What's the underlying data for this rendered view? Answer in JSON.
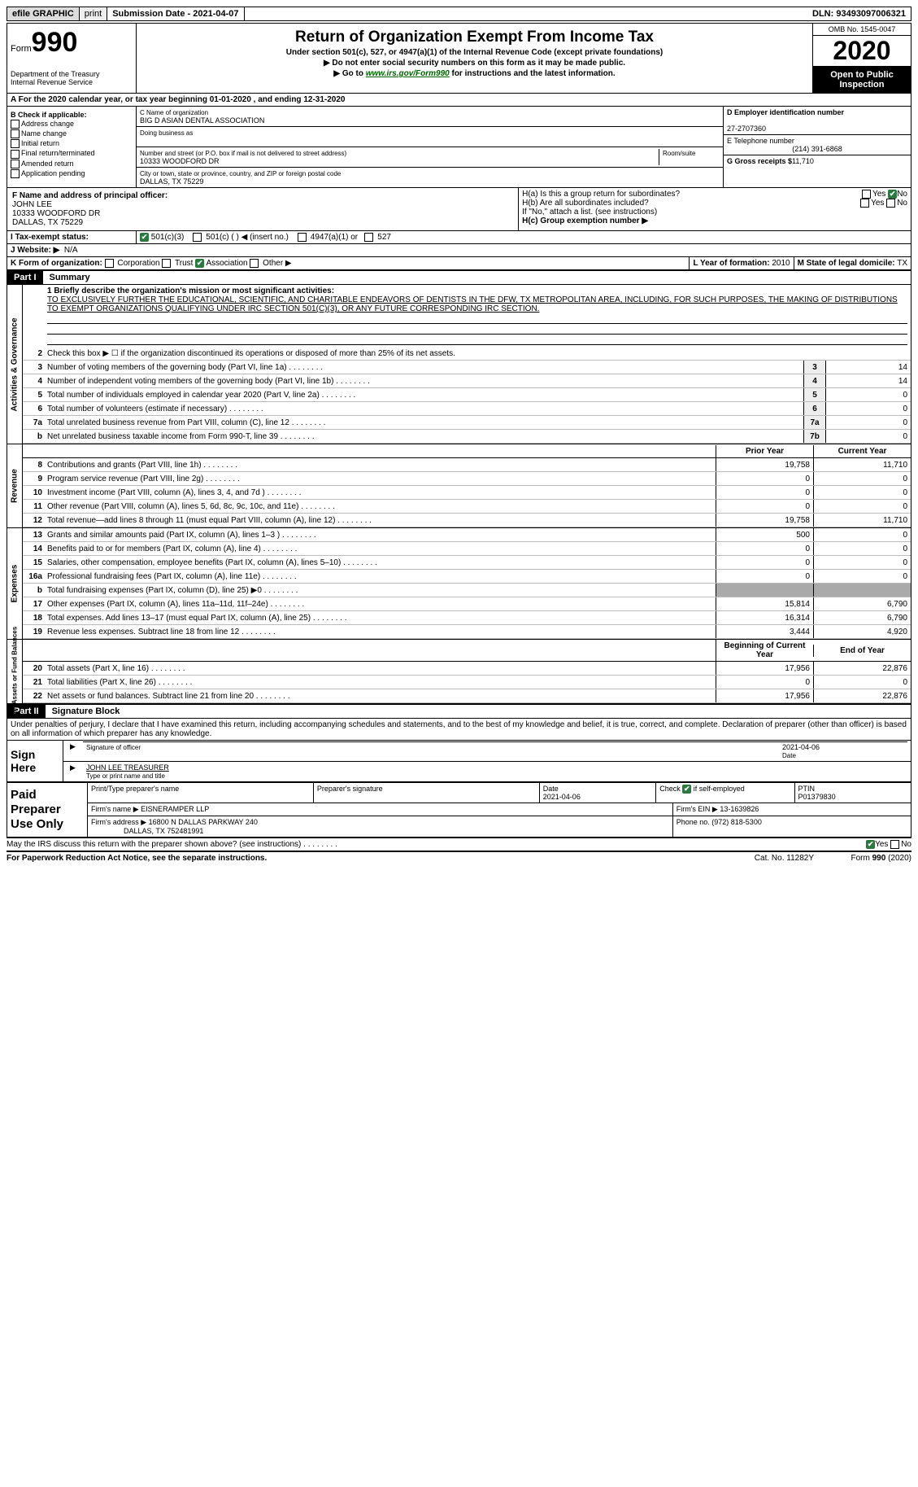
{
  "top": {
    "efile": "efile GRAPHIC",
    "print": "print",
    "sub_label": "Submission Date - ",
    "sub_date": "2021-04-07",
    "dln_label": "DLN: ",
    "dln": "93493097006321"
  },
  "header": {
    "form_label": "Form",
    "form_num": "990",
    "dept": "Department of the Treasury\nInternal Revenue Service",
    "title": "Return of Organization Exempt From Income Tax",
    "sub1": "Under section 501(c), 527, or 4947(a)(1) of the Internal Revenue Code (except private foundations)",
    "sub2": "▶ Do not enter social security numbers on this form as it may be made public.",
    "sub3_pre": "▶ Go to ",
    "sub3_link": "www.irs.gov/Form990",
    "sub3_post": " for instructions and the latest information.",
    "omb": "OMB No. 1545-0047",
    "year": "2020",
    "open": "Open to Public Inspection"
  },
  "row_a": "A For the 2020 calendar year, or tax year beginning 01-01-2020    , and ending 12-31-2020",
  "b": {
    "title": "B Check if applicable:",
    "items": [
      "Address change",
      "Name change",
      "Initial return",
      "Final return/terminated",
      "Amended return",
      "Application pending"
    ]
  },
  "c": {
    "name_label": "C Name of organization",
    "name": "BIG D ASIAN DENTAL ASSOCIATION",
    "dba_label": "Doing business as",
    "dba": "",
    "addr_label": "Number and street (or P.O. box if mail is not delivered to street address)",
    "room_label": "Room/suite",
    "addr": "10333 WOODFORD DR",
    "city_label": "City or town, state or province, country, and ZIP or foreign postal code",
    "city": "DALLAS, TX  75229"
  },
  "d": {
    "label": "D Employer identification number",
    "val": "27-2707360"
  },
  "e": {
    "label": "E Telephone number",
    "val": "(214) 391-6868"
  },
  "g": {
    "label": "G Gross receipts $",
    "val": "11,710"
  },
  "f": {
    "label": "F Name and address of principal officer:",
    "name": "JOHN LEE",
    "addr1": "10333 WOODFORD DR",
    "addr2": "DALLAS, TX  75229"
  },
  "h": {
    "a": "H(a)  Is this a group return for subordinates?",
    "b": "H(b)  Are all subordinates included?",
    "note": "If \"No,\" attach a list. (see instructions)",
    "c_label": "H(c)  Group exemption number ▶",
    "yes": "Yes",
    "no": "No"
  },
  "i": {
    "label": "I   Tax-exempt status:",
    "opts": [
      "501(c)(3)",
      "501(c) (  ) ◀ (insert no.)",
      "4947(a)(1) or",
      "527"
    ]
  },
  "j": {
    "label": "J   Website: ▶",
    "val": "N/A"
  },
  "k": {
    "label": "K Form of organization:",
    "opts": [
      "Corporation",
      "Trust",
      "Association",
      "Other ▶"
    ]
  },
  "l": {
    "label": "L Year of formation:",
    "val": "2010"
  },
  "m": {
    "label": "M State of legal domicile:",
    "val": "TX"
  },
  "part1": {
    "num": "Part I",
    "title": "Summary",
    "mission_label": "1  Briefly describe the organization's mission or most significant activities:",
    "mission": "TO EXCLUSIVELY FURTHER THE EDUCATIONAL, SCIENTIFIC, AND CHARITABLE ENDEAVORS OF DENTISTS IN THE DFW, TX METROPOLITAN AREA, INCLUDING, FOR SUCH PURPOSES, THE MAKING OF DISTRIBUTIONS TO EXEMPT ORGANIZATIONS QUALIFYING UNDER IRC SECTION 501(C)(3), OR ANY FUTURE CORRESPONDING IRC SECTION.",
    "line2": "Check this box ▶ ☐  if the organization discontinued its operations or disposed of more than 25% of its net assets.",
    "vside1": "Activities & Governance",
    "vside2": "Revenue",
    "vside3": "Expenses",
    "vside4": "Net Assets or Fund Balances",
    "prior": "Prior Year",
    "current": "Current Year",
    "begin": "Beginning of Current Year",
    "end": "End of Year",
    "lines_gov": [
      {
        "n": "3",
        "d": "Number of voting members of the governing body (Part VI, line 1a)",
        "box": "3",
        "v": "14"
      },
      {
        "n": "4",
        "d": "Number of independent voting members of the governing body (Part VI, line 1b)",
        "box": "4",
        "v": "14"
      },
      {
        "n": "5",
        "d": "Total number of individuals employed in calendar year 2020 (Part V, line 2a)",
        "box": "5",
        "v": "0"
      },
      {
        "n": "6",
        "d": "Total number of volunteers (estimate if necessary)",
        "box": "6",
        "v": "0"
      },
      {
        "n": "7a",
        "d": "Total unrelated business revenue from Part VIII, column (C), line 12",
        "box": "7a",
        "v": "0"
      },
      {
        "n": "b",
        "d": "Net unrelated business taxable income from Form 990-T, line 39",
        "box": "7b",
        "v": "0"
      }
    ],
    "lines_rev": [
      {
        "n": "8",
        "d": "Contributions and grants (Part VIII, line 1h)",
        "p": "19,758",
        "c": "11,710"
      },
      {
        "n": "9",
        "d": "Program service revenue (Part VIII, line 2g)",
        "p": "0",
        "c": "0"
      },
      {
        "n": "10",
        "d": "Investment income (Part VIII, column (A), lines 3, 4, and 7d )",
        "p": "0",
        "c": "0"
      },
      {
        "n": "11",
        "d": "Other revenue (Part VIII, column (A), lines 5, 6d, 8c, 9c, 10c, and 11e)",
        "p": "0",
        "c": "0"
      },
      {
        "n": "12",
        "d": "Total revenue—add lines 8 through 11 (must equal Part VIII, column (A), line 12)",
        "p": "19,758",
        "c": "11,710"
      }
    ],
    "lines_exp": [
      {
        "n": "13",
        "d": "Grants and similar amounts paid (Part IX, column (A), lines 1–3 )",
        "p": "500",
        "c": "0"
      },
      {
        "n": "14",
        "d": "Benefits paid to or for members (Part IX, column (A), line 4)",
        "p": "0",
        "c": "0"
      },
      {
        "n": "15",
        "d": "Salaries, other compensation, employee benefits (Part IX, column (A), lines 5–10)",
        "p": "0",
        "c": "0"
      },
      {
        "n": "16a",
        "d": "Professional fundraising fees (Part IX, column (A), line 11e)",
        "p": "0",
        "c": "0"
      },
      {
        "n": "b",
        "d": "Total fundraising expenses (Part IX, column (D), line 25) ▶0",
        "p": "",
        "c": "",
        "gray": true
      },
      {
        "n": "17",
        "d": "Other expenses (Part IX, column (A), lines 11a–11d, 11f–24e)",
        "p": "15,814",
        "c": "6,790"
      },
      {
        "n": "18",
        "d": "Total expenses. Add lines 13–17 (must equal Part IX, column (A), line 25)",
        "p": "16,314",
        "c": "6,790"
      },
      {
        "n": "19",
        "d": "Revenue less expenses. Subtract line 18 from line 12",
        "p": "3,444",
        "c": "4,920"
      }
    ],
    "lines_net": [
      {
        "n": "20",
        "d": "Total assets (Part X, line 16)",
        "p": "17,956",
        "c": "22,876"
      },
      {
        "n": "21",
        "d": "Total liabilities (Part X, line 26)",
        "p": "0",
        "c": "0"
      },
      {
        "n": "22",
        "d": "Net assets or fund balances. Subtract line 21 from line 20",
        "p": "17,956",
        "c": "22,876"
      }
    ]
  },
  "part2": {
    "num": "Part II",
    "title": "Signature Block",
    "decl": "Under penalties of perjury, I declare that I have examined this return, including accompanying schedules and statements, and to the best of my knowledge and belief, it is true, correct, and complete. Declaration of preparer (other than officer) is based on all information of which preparer has any knowledge.",
    "sign_here": "Sign Here",
    "sig_officer": "Signature of officer",
    "sig_date_label": "Date",
    "sig_date": "2021-04-06",
    "sig_name": "JOHN LEE TREASURER",
    "sig_name_label": "Type or print name and title",
    "paid": "Paid Preparer Use Only",
    "prep_name_label": "Print/Type preparer's name",
    "prep_sig_label": "Preparer's signature",
    "prep_date_label": "Date",
    "prep_date": "2021-04-06",
    "check_self": "Check ☑ if self-employed",
    "ptin_label": "PTIN",
    "ptin": "P01379830",
    "firm_name_label": "Firm's name    ▶",
    "firm_name": "EISNERAMPER LLP",
    "firm_ein_label": "Firm's EIN ▶",
    "firm_ein": "13-1639826",
    "firm_addr_label": "Firm's address ▶",
    "firm_addr": "16800 N DALLAS PARKWAY 240",
    "firm_addr2": "DALLAS, TX  752481991",
    "phone_label": "Phone no.",
    "phone": "(972) 818-5300",
    "discuss": "May the IRS discuss this return with the preparer shown above? (see instructions)",
    "paperwork": "For Paperwork Reduction Act Notice, see the separate instructions.",
    "cat": "Cat. No. 11282Y",
    "form_foot": "Form 990 (2020)"
  }
}
